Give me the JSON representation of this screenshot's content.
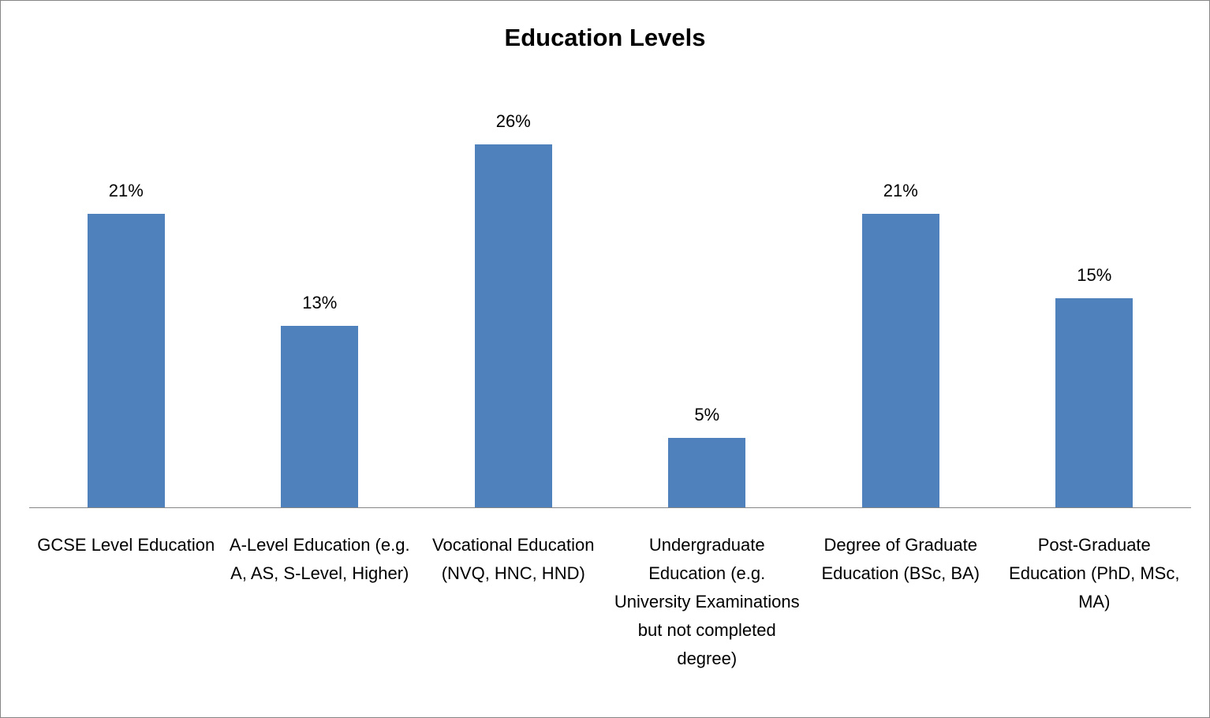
{
  "chart_data": {
    "type": "bar",
    "title": "Education Levels",
    "categories": [
      "GCSE Level Education",
      "A-Level Education (e.g. A, AS, S-Level, Higher)",
      "Vocational Education (NVQ, HNC, HND)",
      "Undergraduate Education (e.g. University Examinations but not completed degree)",
      "Degree of Graduate Education (BSc, BA)",
      "Post-Graduate Education (PhD, MSc, MA)"
    ],
    "values": [
      21,
      13,
      26,
      5,
      21,
      15
    ],
    "value_labels": [
      "21%",
      "13%",
      "26%",
      "5%",
      "21%",
      "15%"
    ],
    "color": "#4f81bd"
  }
}
